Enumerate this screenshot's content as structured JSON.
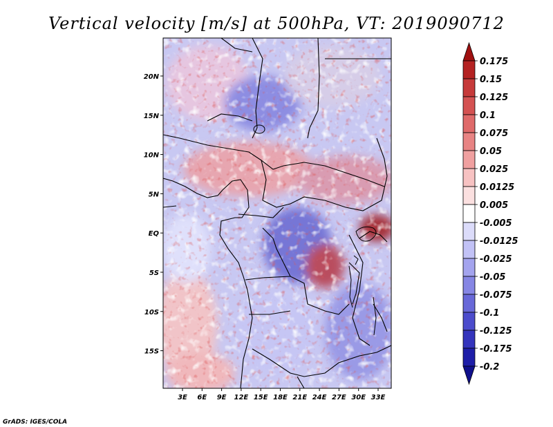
{
  "title": "Vertical velocity [m/s] at 500hPa, VT: 2019090712",
  "credit": "GrADS: IGES/COLA",
  "map": {
    "lat_labels": [
      "20N",
      "15N",
      "10N",
      "5N",
      "EQ",
      "5S",
      "10S",
      "15S"
    ],
    "lon_labels": [
      "3E",
      "6E",
      "9E",
      "12E",
      "15E",
      "18E",
      "21E",
      "24E",
      "27E",
      "30E",
      "33E"
    ]
  },
  "colorbar": {
    "levels": [
      "0.175",
      "0.15",
      "0.125",
      "0.1",
      "0.075",
      "0.05",
      "0.025",
      "0.0125",
      "0.005",
      "-0.005",
      "-0.0125",
      "-0.025",
      "-0.05",
      "-0.075",
      "-0.1",
      "-0.125",
      "-0.175",
      "-0.2"
    ],
    "colors": [
      "#a01010",
      "#b42222",
      "#c63a3a",
      "#d45252",
      "#df6a6a",
      "#e88484",
      "#f0a0a0",
      "#f7c2c2",
      "#fbe0e0",
      "#ffffff",
      "#dcdcfa",
      "#c2c2f6",
      "#a4a4ee",
      "#8686e4",
      "#6868d8",
      "#4c4ccc",
      "#3434bc",
      "#1e1ea8",
      "#10108c"
    ]
  }
}
